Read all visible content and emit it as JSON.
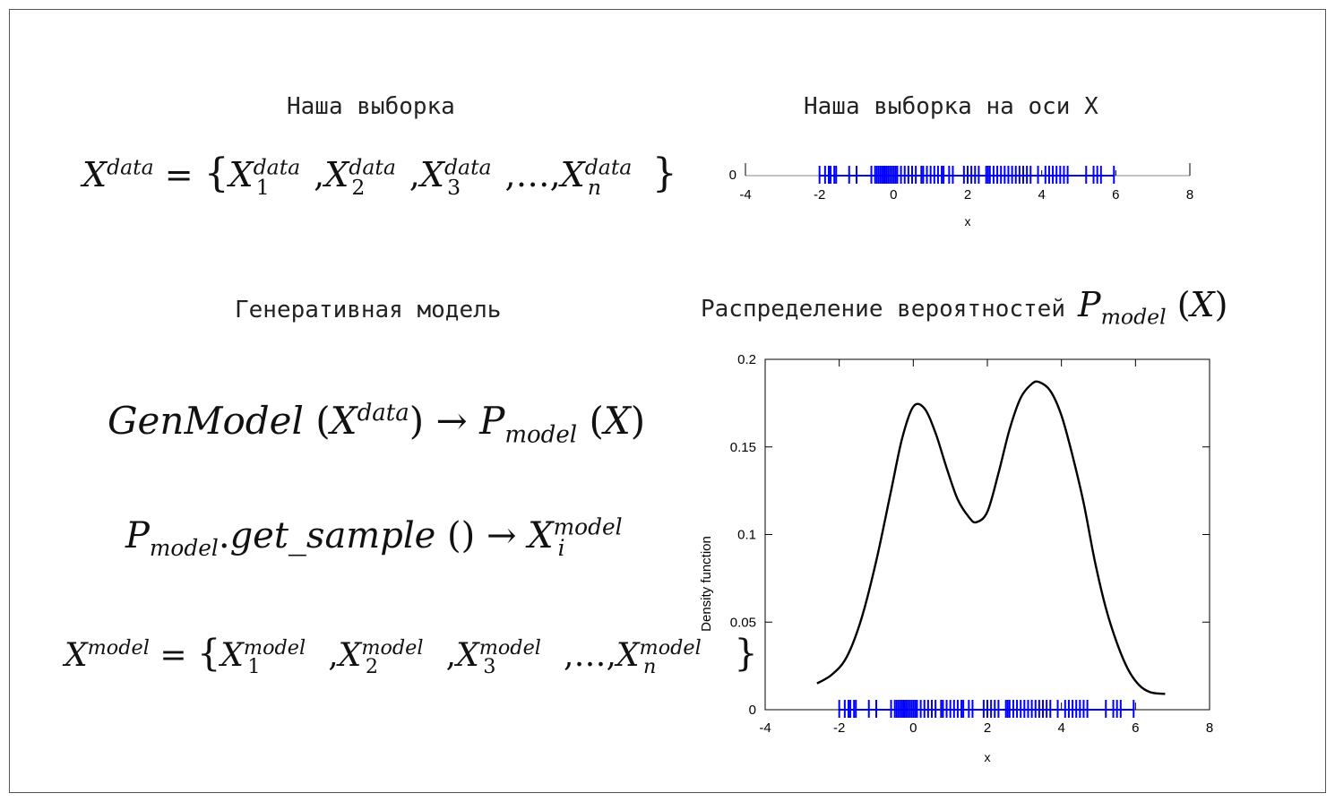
{
  "headings": {
    "sample": "Наша выборка",
    "sample_axis": "Наша выборка на оси X",
    "gen_model": "Генеративная модель",
    "distribution": "Распределение вероятностей"
  },
  "formulas": {
    "x_data_lhs": "X",
    "x_data_sup": "data",
    "eq": "=",
    "sub1": "1",
    "sub2": "2",
    "sub3": "3",
    "subn": "n",
    "dots": "…",
    "genmodel": "GenModel",
    "arrow": "→",
    "p": "P",
    "model_sub": "model",
    "x": "X",
    "get_sample": "get_sample",
    "i_sub": "i",
    "model_sup": "model"
  },
  "colors": {
    "rug": "#0000ff",
    "curve": "#000000",
    "axis": "#000000"
  },
  "chart_data": [
    {
      "type": "scatter",
      "title": "",
      "xlabel": "x",
      "ylabel": "",
      "xlim": [
        -4,
        8
      ],
      "xticks": [
        "-4",
        "-2",
        "0",
        "2",
        "4",
        "6",
        "8"
      ],
      "yticks": [
        "0"
      ],
      "rug": [
        -2.0,
        -1.85,
        -1.75,
        -1.7,
        -1.6,
        -1.55,
        -1.2,
        -1.0,
        -0.6,
        -0.5,
        -0.45,
        -0.4,
        -0.35,
        -0.3,
        -0.25,
        -0.2,
        -0.15,
        -0.1,
        -0.05,
        0.0,
        0.05,
        0.1,
        0.2,
        0.3,
        0.4,
        0.5,
        0.6,
        0.75,
        0.8,
        0.9,
        1.0,
        1.1,
        1.2,
        1.3,
        1.35,
        1.5,
        1.6,
        1.9,
        2.0,
        2.1,
        2.2,
        2.3,
        2.5,
        2.55,
        2.6,
        2.7,
        2.8,
        2.9,
        3.0,
        3.1,
        3.2,
        3.3,
        3.4,
        3.5,
        3.6,
        3.7,
        3.9,
        4.1,
        4.2,
        4.3,
        4.4,
        4.5,
        4.6,
        4.7,
        5.2,
        5.4,
        5.5,
        5.6,
        5.95
      ]
    },
    {
      "type": "line",
      "title": "",
      "xlabel": "x",
      "ylabel": "Density function",
      "xlim": [
        -4,
        8
      ],
      "ylim": [
        0,
        0.2
      ],
      "xticks": [
        "-4",
        "-2",
        "0",
        "2",
        "4",
        "6",
        "8"
      ],
      "yticks": [
        "0",
        "0.05",
        "0.1",
        "0.15",
        "0.2"
      ],
      "curve_x": [
        -2.6,
        -2.2,
        -1.8,
        -1.4,
        -1.0,
        -0.6,
        -0.3,
        0.0,
        0.3,
        0.6,
        0.9,
        1.2,
        1.5,
        1.7,
        2.0,
        2.3,
        2.6,
        2.9,
        3.2,
        3.4,
        3.7,
        4.0,
        4.3,
        4.6,
        4.9,
        5.2,
        5.5,
        5.8,
        6.1,
        6.4,
        6.8
      ],
      "curve_y": [
        0.015,
        0.02,
        0.03,
        0.052,
        0.085,
        0.125,
        0.155,
        0.173,
        0.172,
        0.158,
        0.138,
        0.12,
        0.11,
        0.107,
        0.113,
        0.135,
        0.16,
        0.178,
        0.186,
        0.187,
        0.182,
        0.168,
        0.145,
        0.118,
        0.085,
        0.058,
        0.038,
        0.023,
        0.014,
        0.01,
        0.009
      ],
      "rug": [
        -2.0,
        -1.85,
        -1.75,
        -1.7,
        -1.6,
        -1.55,
        -1.2,
        -1.0,
        -0.6,
        -0.5,
        -0.45,
        -0.4,
        -0.35,
        -0.3,
        -0.25,
        -0.2,
        -0.15,
        -0.1,
        -0.05,
        0.0,
        0.05,
        0.1,
        0.2,
        0.3,
        0.4,
        0.5,
        0.6,
        0.75,
        0.8,
        0.9,
        1.0,
        1.1,
        1.2,
        1.3,
        1.35,
        1.5,
        1.6,
        1.9,
        2.0,
        2.1,
        2.2,
        2.3,
        2.5,
        2.55,
        2.6,
        2.7,
        2.8,
        2.9,
        3.0,
        3.1,
        3.2,
        3.3,
        3.4,
        3.5,
        3.6,
        3.7,
        3.9,
        4.1,
        4.2,
        4.3,
        4.4,
        4.5,
        4.6,
        4.7,
        5.2,
        5.4,
        5.5,
        5.6,
        5.95
      ]
    }
  ]
}
